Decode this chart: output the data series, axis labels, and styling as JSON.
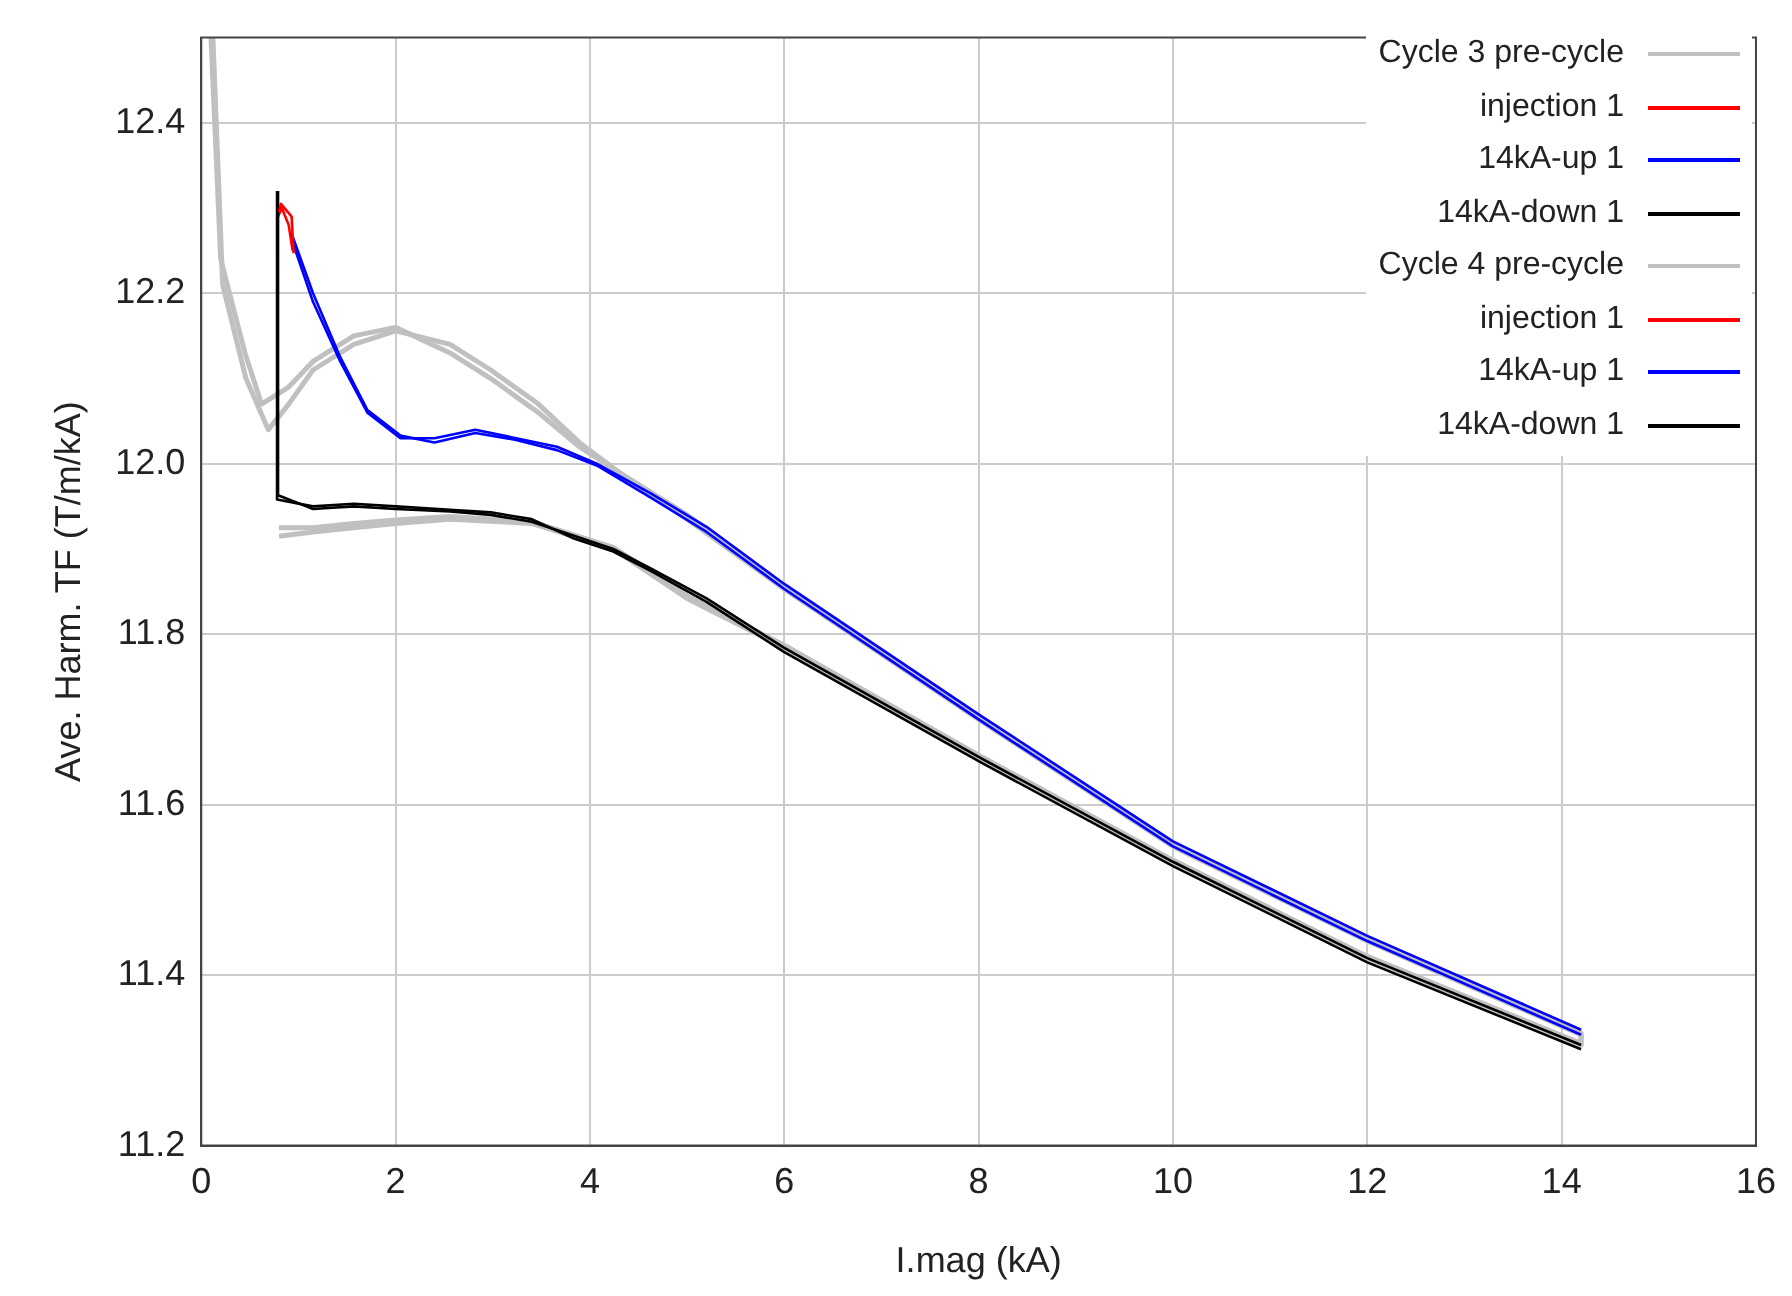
{
  "chart_data": {
    "type": "line",
    "xlabel": "I.mag (kA)",
    "ylabel": "Ave. Harm. TF (T/m/kA)",
    "xlim": [
      0,
      16
    ],
    "xticks": [
      0,
      2,
      4,
      6,
      8,
      10,
      12,
      14,
      16
    ],
    "ylim": [
      11.2,
      12.5
    ],
    "yticks": [
      11.2,
      11.4,
      11.6,
      11.8,
      {
        "value": 12,
        "label": "12.0"
      },
      12.2,
      12.4
    ],
    "grid": true,
    "legend": "top right",
    "series": [
      {
        "name": "Cycle 3 pre-cycle",
        "color": "#c0c0c0",
        "x": [
          0.12,
          0.22,
          0.46,
          0.69,
          0.9,
          1.15,
          1.57,
          2.0,
          2.56,
          2.98,
          3.47,
          3.89,
          4.3,
          5,
          6,
          8,
          10,
          12,
          14.2,
          14.2,
          12,
          10,
          8,
          6,
          5,
          4.24,
          3.4,
          2.56,
          2.0,
          1.57,
          1.15,
          0.8
        ],
        "values": [
          12.5,
          12.21,
          12.1,
          12.04,
          12.07,
          12.11,
          12.14,
          12.156,
          12.14,
          12.11,
          12.07,
          12.025,
          11.99,
          11.935,
          11.853,
          11.7,
          11.551,
          11.44,
          11.33,
          11.318,
          11.42,
          11.533,
          11.656,
          11.784,
          11.842,
          11.9,
          11.93,
          11.935,
          11.93,
          11.925,
          11.92,
          11.915
        ]
      },
      {
        "name": "injection 1",
        "color": "#ff0000",
        "x": [
          0.8,
          0.82,
          0.93,
          0.95
        ],
        "values": [
          12.295,
          12.305,
          12.29,
          12.247
        ]
      },
      {
        "name": "14kA-up 1",
        "color": "#0000ff",
        "x": [
          0.93,
          1.15,
          1.43,
          1.71,
          2.05,
          2.4,
          2.82,
          3.24,
          3.66,
          4.07,
          4.63,
          5.2,
          6,
          8,
          10,
          12,
          14.2
        ],
        "values": [
          12.27,
          12.2,
          12.125,
          12.063,
          12.033,
          12.025,
          12.036,
          12.028,
          12.016,
          11.998,
          11.96,
          11.92,
          11.853,
          11.7,
          11.551,
          11.44,
          11.33
        ]
      },
      {
        "name": "14kA-down 1",
        "color": "#000000",
        "x": [
          14.2,
          12,
          10,
          8,
          6,
          5.2,
          4.63,
          4.24,
          3.82,
          3.4,
          2.98,
          2.56,
          2.0,
          1.57,
          1.15,
          0.79,
          0.79
        ],
        "values": [
          11.318,
          11.42,
          11.533,
          11.656,
          11.784,
          11.842,
          11.877,
          11.9,
          11.916,
          11.932,
          11.94,
          11.944,
          11.947,
          11.95,
          11.947,
          11.963,
          12.32
        ]
      },
      {
        "name": "Cycle 4 pre-cycle",
        "color": "#c0c0c0",
        "x": [
          0.1,
          0.2,
          0.45,
          0.62,
          0.9,
          1.15,
          1.57,
          2.0,
          2.56,
          2.98,
          3.47,
          3.89,
          4.3,
          5,
          6,
          8,
          10,
          12,
          14.2,
          14.2,
          12,
          10,
          8,
          6,
          5,
          4.24,
          3.4,
          2.56,
          2.0,
          1.57,
          1.15,
          0.8
        ],
        "values": [
          12.5,
          12.24,
          12.13,
          12.07,
          12.09,
          12.12,
          12.15,
          12.16,
          12.13,
          12.1,
          12.06,
          12.02,
          11.99,
          11.94,
          11.856,
          11.703,
          11.553,
          11.442,
          11.332,
          11.32,
          11.422,
          11.535,
          11.658,
          11.787,
          11.845,
          11.902,
          11.932,
          11.938,
          11.934,
          11.93,
          11.925,
          11.925
        ]
      },
      {
        "name": "injection 1",
        "color": "#ff0000",
        "x": [
          0.79,
          0.83,
          0.9,
          0.94
        ],
        "values": [
          12.29,
          12.3,
          12.28,
          12.25
        ]
      },
      {
        "name": "14kA-up 1",
        "color": "#0000ff",
        "x": [
          0.94,
          1.15,
          1.43,
          1.71,
          2.05,
          2.4,
          2.82,
          3.24,
          3.66,
          4.07,
          4.63,
          5.2,
          6,
          8,
          10,
          12,
          14.2
        ],
        "values": [
          12.26,
          12.19,
          12.12,
          12.06,
          12.03,
          12.03,
          12.04,
          12.03,
          12.02,
          12.0,
          11.965,
          11.926,
          11.859,
          11.706,
          11.557,
          11.446,
          11.336
        ]
      },
      {
        "name": "14kA-down 1",
        "color": "#000000",
        "x": [
          14.2,
          12,
          10,
          8,
          6,
          5.2,
          4.63,
          4.24,
          3.82,
          3.4,
          2.98,
          2.56,
          2.0,
          1.57,
          1.15,
          0.78,
          0.78
        ],
        "values": [
          11.313,
          11.415,
          11.528,
          11.651,
          11.779,
          11.838,
          11.874,
          11.897,
          11.913,
          11.935,
          11.943,
          11.946,
          11.95,
          11.953,
          11.95,
          11.958,
          12.32
        ]
      }
    ]
  }
}
